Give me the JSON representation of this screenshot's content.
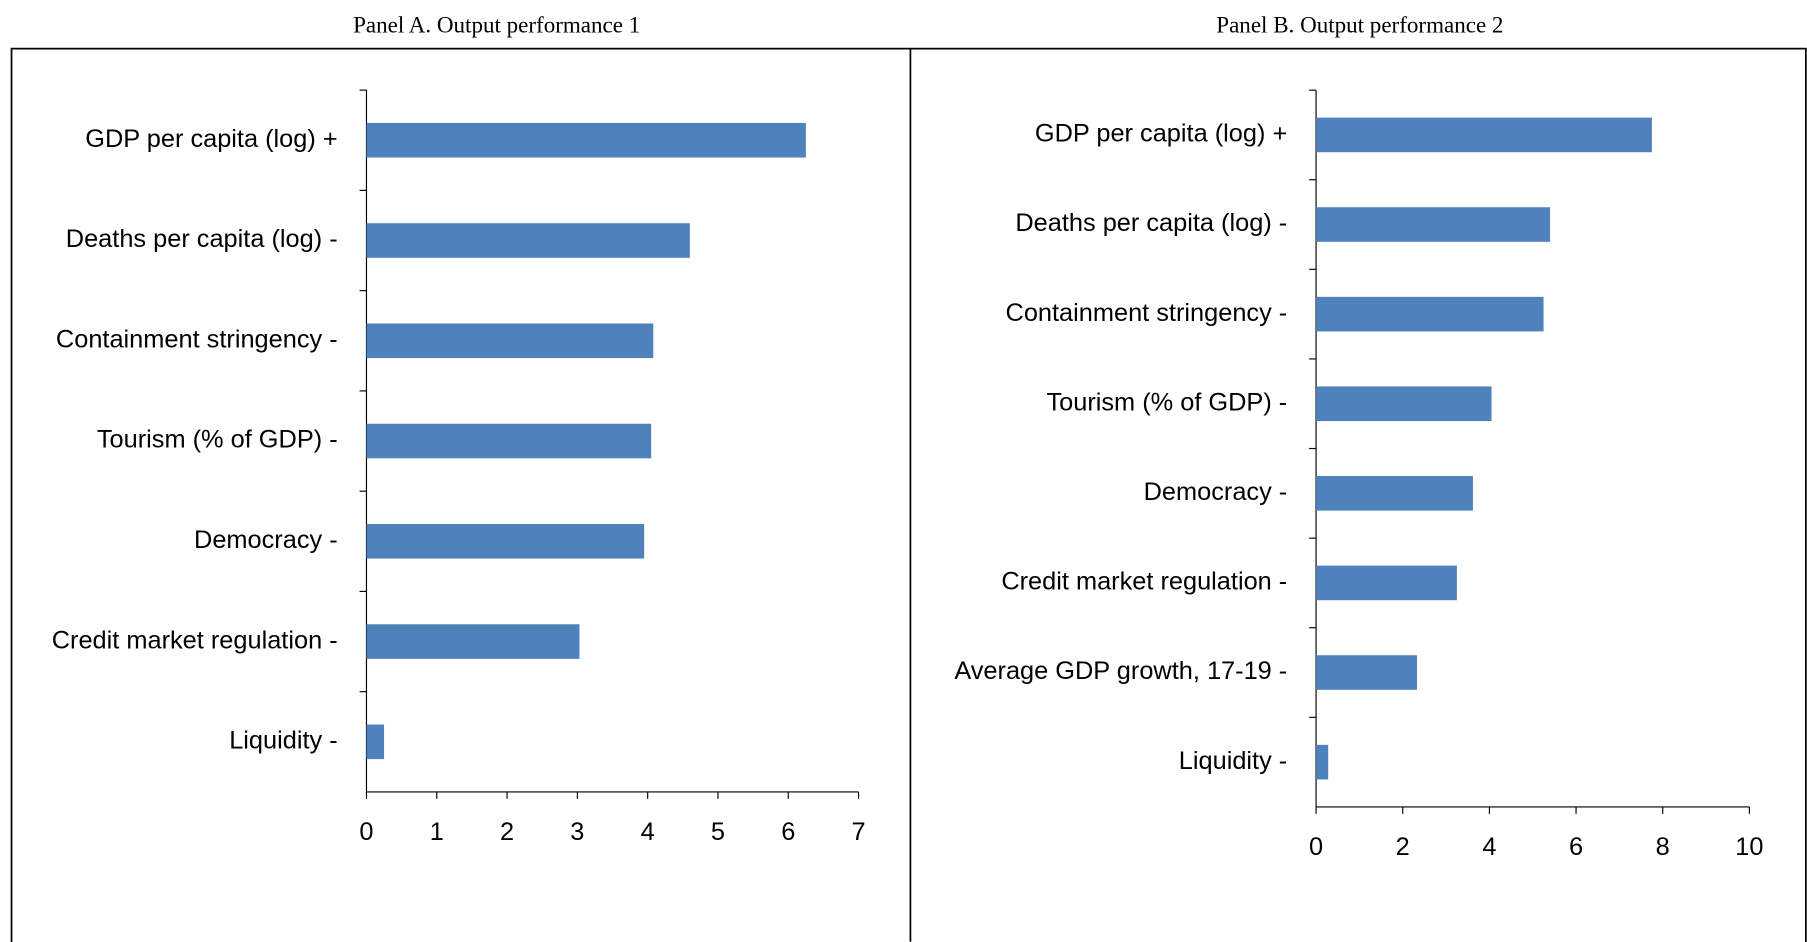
{
  "chart_data": [
    {
      "type": "bar",
      "orientation": "horizontal",
      "title": "Panel A. Output performance 1",
      "categories": [
        "GDP per capita (log) +",
        "Deaths per capita (log) -",
        "Containment stringency -",
        "Tourism (% of GDP) -",
        "Democracy -",
        "Credit market regulation -",
        "Liquidity -"
      ],
      "values": [
        6.25,
        4.6,
        4.08,
        4.05,
        3.95,
        3.03,
        0.25
      ],
      "color": "#4f81bd",
      "xlim": [
        0,
        7
      ],
      "xticks": [
        0,
        1,
        2,
        3,
        4,
        5,
        6,
        7
      ]
    },
    {
      "type": "bar",
      "orientation": "horizontal",
      "title": "Panel B. Output performance 2",
      "categories": [
        "GDP per capita (log) +",
        "Deaths per capita (log) -",
        "Containment stringency -",
        "Tourism (% of GDP) -",
        "Democracy -",
        "Credit market regulation -",
        "Average GDP growth, 17-19 -",
        "Liquidity -"
      ],
      "values": [
        7.75,
        5.4,
        5.25,
        4.05,
        3.62,
        3.25,
        2.33,
        0.28
      ],
      "color": "#4f81bd",
      "xlim": [
        0,
        10
      ],
      "xticks": [
        0,
        2,
        4,
        6,
        8,
        10
      ]
    }
  ]
}
